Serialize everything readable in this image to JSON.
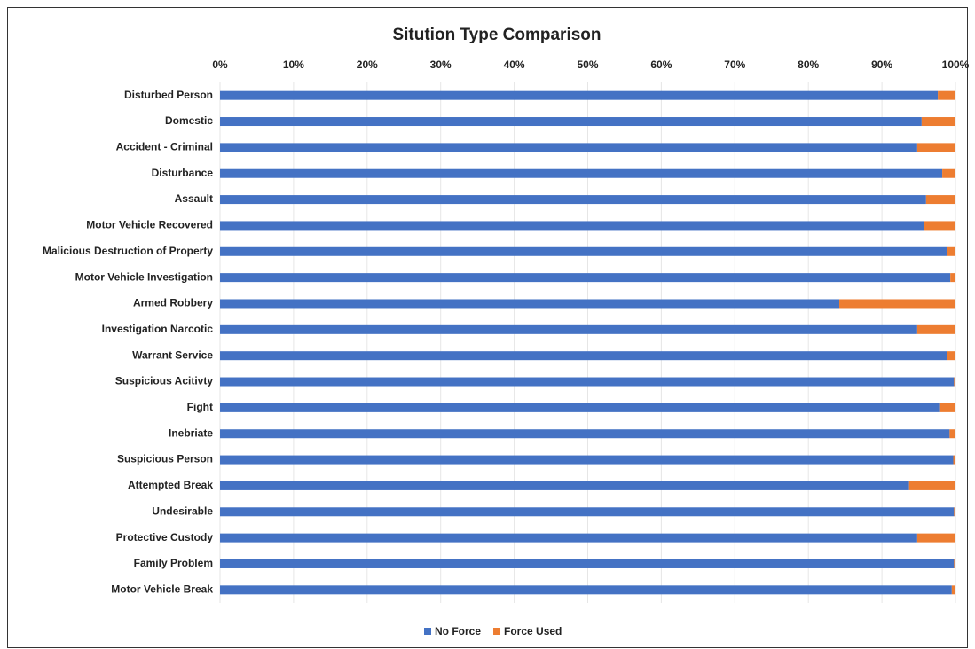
{
  "chart_data": {
    "type": "stacked_barh",
    "title": "Sitution Type Comparison",
    "categories": [
      "Disturbed Person",
      "Domestic",
      "Accident - Criminal",
      "Disturbance",
      "Assault",
      "Motor Vehicle Recovered",
      "Malicious Destruction of Property",
      "Motor Vehicle Investigation",
      "Armed Robbery",
      "Investigation Narcotic",
      "Warrant Service",
      "Suspicious Acitivty",
      "Fight",
      "Inebriate",
      "Suspicious Person",
      "Attempted Break",
      "Undesirable",
      "Protective Custody",
      "Family Problem",
      "Motor Vehicle Break"
    ],
    "series": [
      {
        "name": "No Force",
        "color": "#4472c4",
        "values": [
          97.6,
          95.4,
          94.8,
          98.2,
          96.0,
          95.7,
          98.9,
          99.3,
          84.2,
          94.8,
          98.9,
          99.8,
          97.8,
          99.2,
          99.7,
          93.7,
          99.8,
          94.8,
          99.8,
          99.5
        ]
      },
      {
        "name": "Force Used",
        "color": "#ed7d31",
        "values": [
          2.4,
          4.6,
          5.2,
          1.8,
          4.0,
          4.3,
          1.1,
          0.7,
          15.8,
          5.2,
          1.1,
          0.2,
          2.2,
          0.8,
          0.3,
          6.3,
          0.2,
          5.2,
          0.2,
          0.5
        ]
      }
    ],
    "xlim": [
      0,
      100
    ],
    "xticks": [
      {
        "value": 0,
        "label": "0%"
      },
      {
        "value": 10,
        "label": "10%"
      },
      {
        "value": 20,
        "label": "20%"
      },
      {
        "value": 30,
        "label": "30%"
      },
      {
        "value": 40,
        "label": "40%"
      },
      {
        "value": 50,
        "label": "50%"
      },
      {
        "value": 60,
        "label": "60%"
      },
      {
        "value": 70,
        "label": "70%"
      },
      {
        "value": 80,
        "label": "80%"
      },
      {
        "value": 90,
        "label": "90%"
      },
      {
        "value": 100,
        "label": "100%"
      }
    ],
    "grid": true,
    "legend": "bottom"
  }
}
